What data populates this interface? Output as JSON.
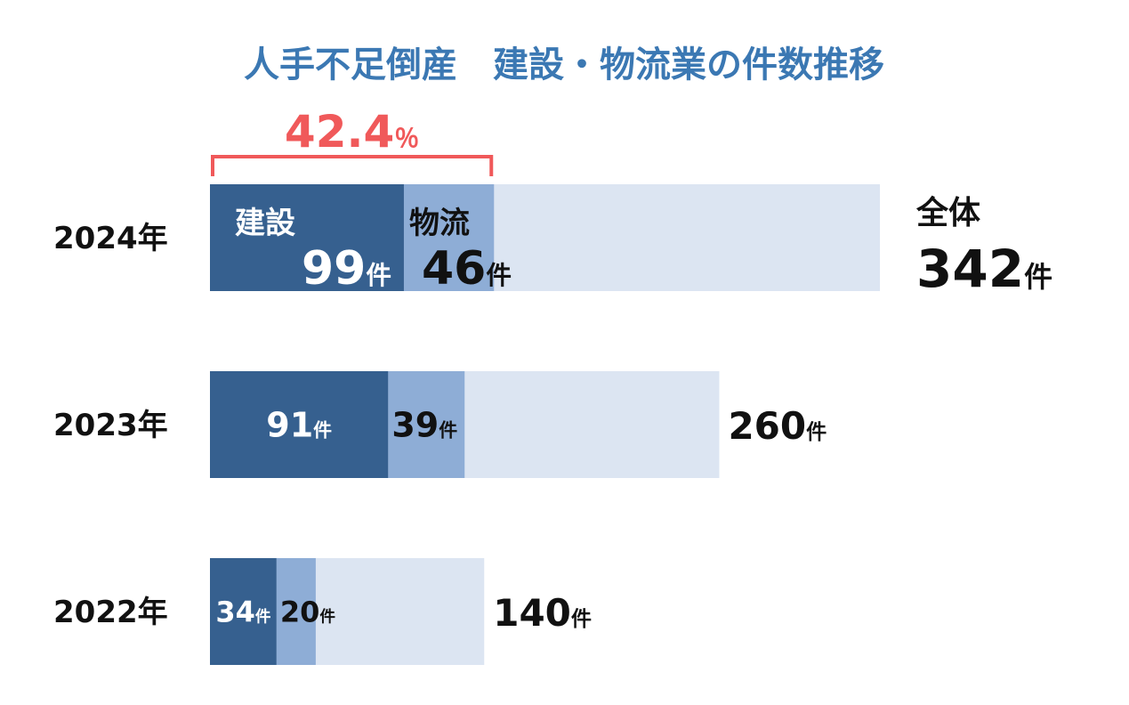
{
  "chart_data": {
    "type": "bar",
    "orientation": "horizontal",
    "title": "人手不足倒産　建設・物流業の件数推移",
    "categories": [
      "2024年",
      "2023年",
      "2022年"
    ],
    "unit": "件",
    "series": [
      {
        "name": "建設",
        "color": "#36608f",
        "values": [
          99,
          91,
          34
        ]
      },
      {
        "name": "物流",
        "color": "#8eadd6",
        "values": [
          46,
          39,
          20
        ]
      },
      {
        "name": "全体",
        "color": "#dce5f2",
        "values": [
          342,
          260,
          140
        ]
      }
    ],
    "xlim": [
      0,
      342
    ],
    "annotation": {
      "value": 42.4,
      "unit": "％",
      "color": "#f0595a"
    }
  }
}
